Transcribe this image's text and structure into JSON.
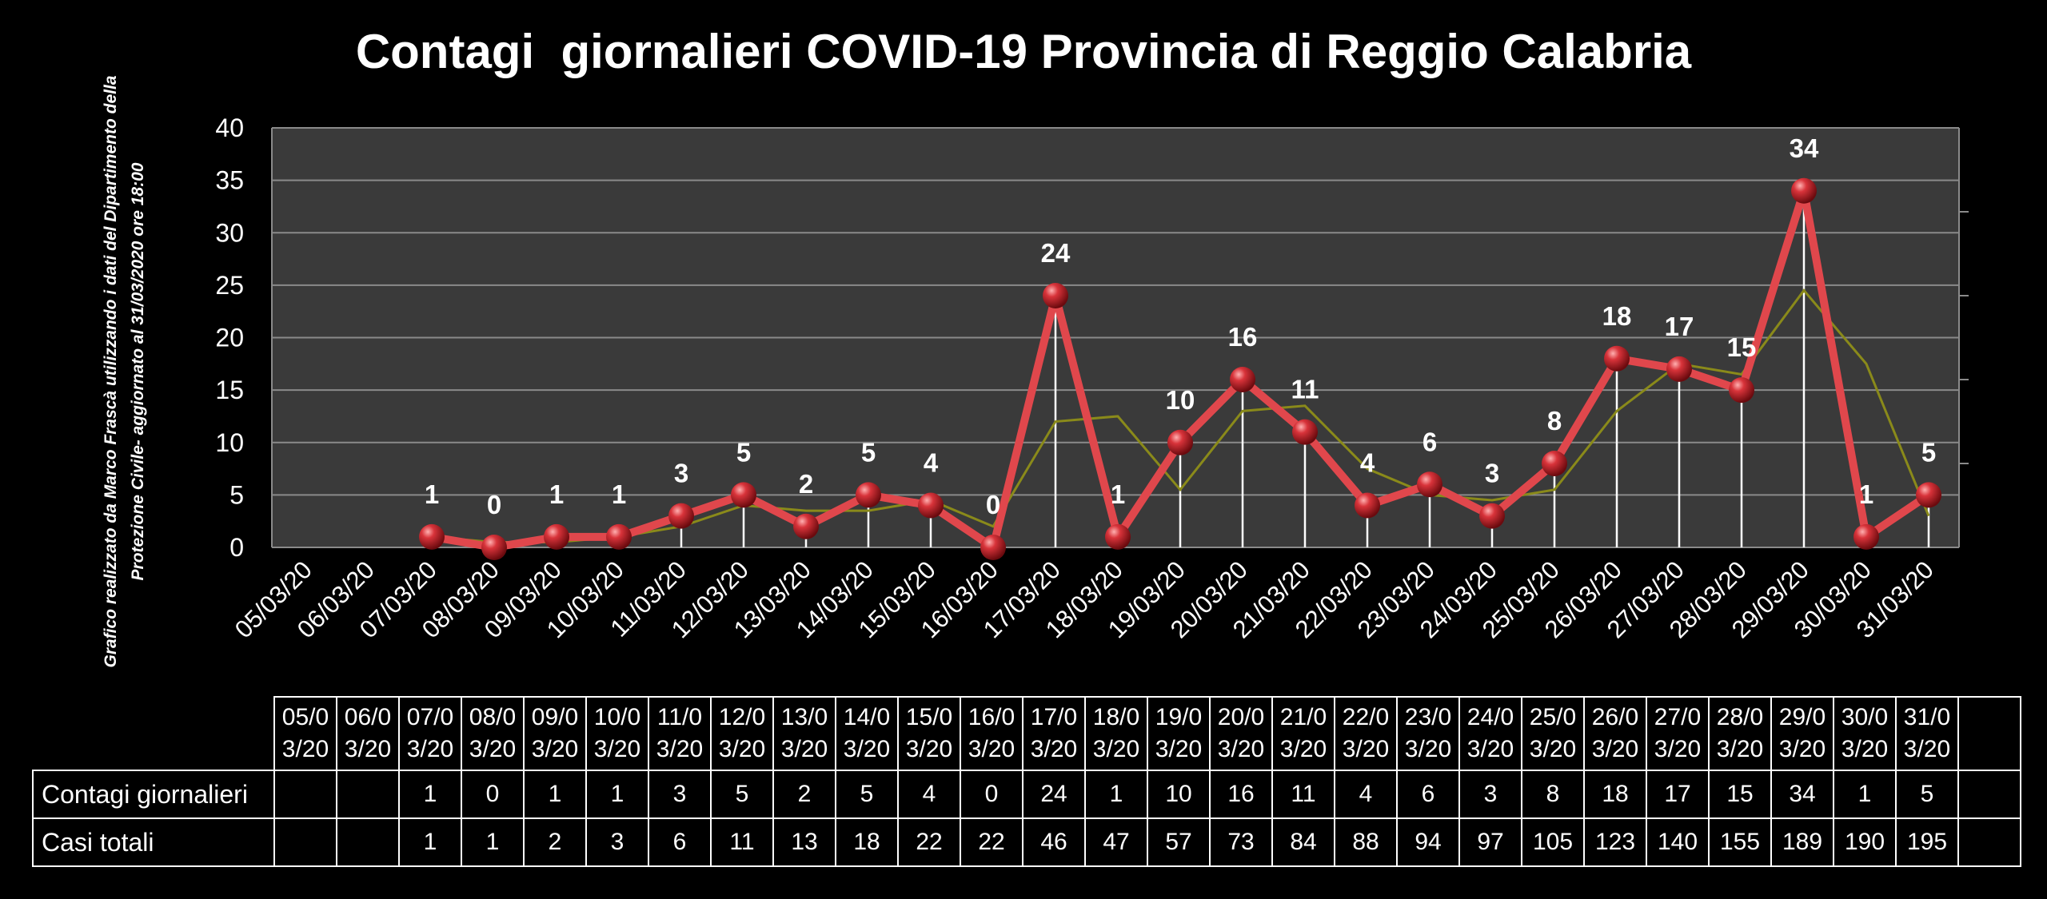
{
  "chart_data": {
    "type": "line",
    "title": "Contagi  giornalieri COVID-19 Provincia di Reggio Calabria",
    "side_note": [
      "Grafico  realizzato da Marco Frascà  utilizzando i dati del Dipartimento  della",
      "Protezione Civile- aggiornato  al 31/03/2020 ore 18:00"
    ],
    "categories": [
      "05/03/20",
      "06/03/20",
      "07/03/20",
      "08/03/20",
      "09/03/20",
      "10/03/20",
      "11/03/20",
      "12/03/20",
      "13/03/20",
      "14/03/20",
      "15/03/20",
      "16/03/20",
      "17/03/20",
      "18/03/20",
      "19/03/20",
      "20/03/20",
      "21/03/20",
      "22/03/20",
      "23/03/20",
      "24/03/20",
      "25/03/20",
      "26/03/20",
      "27/03/20",
      "28/03/20",
      "29/03/20",
      "30/03/20",
      "31/03/20"
    ],
    "series": [
      {
        "name": "Contagi giornalieri",
        "values": [
          null,
          null,
          1,
          0,
          1,
          1,
          3,
          5,
          2,
          5,
          4,
          0,
          24,
          1,
          10,
          16,
          11,
          4,
          6,
          3,
          8,
          18,
          17,
          15,
          34,
          1,
          5
        ],
        "color": "#e0474c"
      },
      {
        "name": "",
        "values": [
          null,
          null,
          1,
          0.5,
          0.5,
          1,
          2,
          4,
          3.5,
          3.5,
          4.5,
          2,
          12,
          12.5,
          5.5,
          13,
          13.5,
          7.5,
          5,
          4.5,
          5.5,
          13,
          17.5,
          16.5,
          24.5,
          17.5,
          3
        ],
        "color": "#8a8a1a"
      }
    ],
    "table_rows": [
      {
        "label": "Contagi giornalieri",
        "values": [
          "",
          "",
          "1",
          "0",
          "1",
          "1",
          "3",
          "5",
          "2",
          "5",
          "4",
          "0",
          "24",
          "1",
          "10",
          "16",
          "11",
          "4",
          "6",
          "3",
          "8",
          "18",
          "17",
          "15",
          "34",
          "1",
          "5"
        ]
      },
      {
        "label": "Casi totali",
        "values": [
          "",
          "",
          "1",
          "1",
          "2",
          "3",
          "6",
          "11",
          "13",
          "18",
          "22",
          "22",
          "46",
          "47",
          "57",
          "73",
          "84",
          "88",
          "94",
          "97",
          "105",
          "123",
          "140",
          "155",
          "189",
          "190",
          "195"
        ]
      }
    ],
    "ylim": [
      0,
      40
    ],
    "yticks": [
      0,
      5,
      10,
      15,
      20,
      25,
      30,
      35,
      40
    ],
    "grid": true,
    "legend": "table"
  }
}
